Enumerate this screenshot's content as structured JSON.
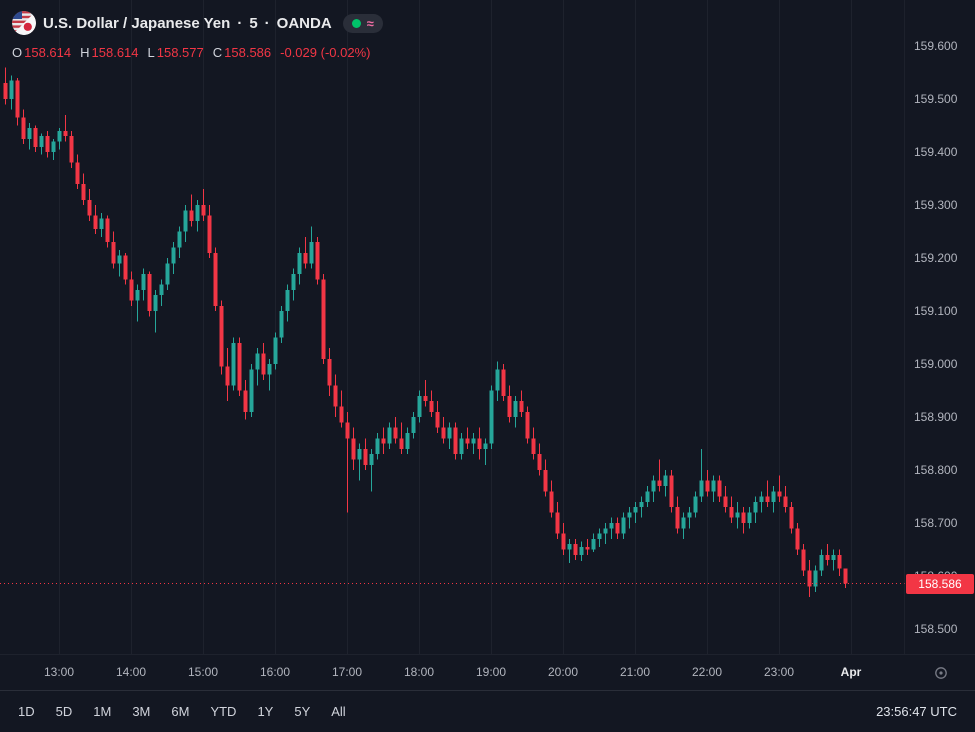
{
  "header": {
    "symbol": "U.S. Dollar / Japanese Yen",
    "sep": "·",
    "interval": "5",
    "exchange": "OANDA",
    "approx_symbol": "≈",
    "ohlc": {
      "o_label": "O",
      "o": "158.614",
      "h_label": "H",
      "h": "158.614",
      "l_label": "L",
      "l": "158.577",
      "c_label": "C",
      "c": "158.586",
      "change": "-0.029 (-0.02%)"
    }
  },
  "colors": {
    "background": "#131722",
    "up": "#26a69a",
    "down": "#f23645",
    "grid": "#1e222d",
    "axis_text": "#b2b5be",
    "status_dot_green": "#00c46a",
    "approx_pink": "#f16ea4"
  },
  "toolbar": {
    "ranges": [
      "1D",
      "5D",
      "1M",
      "3M",
      "6M",
      "YTD",
      "1Y",
      "5Y",
      "All"
    ],
    "clock": "23:56:47 UTC"
  },
  "chart_data": {
    "type": "candlestick",
    "title": "U.S. Dollar / Japanese Yen · 5 · OANDA",
    "xlabel": "",
    "ylabel": "",
    "grid": "vertical-only",
    "start_time": "12:15",
    "step_minutes": 5,
    "ylim": [
      158.451,
      159.687
    ],
    "bar_x0": 5,
    "bar_step": 6,
    "last_price": "158.586",
    "price_ticks": [
      "159.600",
      "159.500",
      "159.400",
      "159.300",
      "159.200",
      "159.100",
      "159.000",
      "158.900",
      "158.800",
      "158.700",
      "158.600",
      "158.500"
    ],
    "time_labels": [
      {
        "label": "13:00",
        "index": 9
      },
      {
        "label": "14:00",
        "index": 21
      },
      {
        "label": "15:00",
        "index": 33
      },
      {
        "label": "16:00",
        "index": 45
      },
      {
        "label": "17:00",
        "index": 57
      },
      {
        "label": "18:00",
        "index": 69
      },
      {
        "label": "19:00",
        "index": 81
      },
      {
        "label": "20:00",
        "index": 93
      },
      {
        "label": "21:00",
        "index": 105
      },
      {
        "label": "22:00",
        "index": 117
      },
      {
        "label": "23:00",
        "index": 129
      },
      {
        "label": "Apr",
        "index": 141,
        "highlight": true
      }
    ],
    "candles": [
      [
        159.53,
        159.56,
        159.49,
        159.5
      ],
      [
        159.5,
        159.545,
        159.48,
        159.535
      ],
      [
        159.535,
        159.54,
        159.45,
        159.465
      ],
      [
        159.465,
        159.48,
        159.415,
        159.425
      ],
      [
        159.425,
        159.455,
        159.405,
        159.445
      ],
      [
        159.445,
        159.45,
        159.4,
        159.41
      ],
      [
        159.41,
        159.435,
        159.395,
        159.43
      ],
      [
        159.43,
        159.44,
        159.39,
        159.4
      ],
      [
        159.4,
        159.425,
        159.385,
        159.42
      ],
      [
        159.42,
        159.445,
        159.405,
        159.44
      ],
      [
        159.44,
        159.47,
        159.42,
        159.43
      ],
      [
        159.43,
        159.44,
        159.37,
        159.38
      ],
      [
        159.38,
        159.395,
        159.33,
        159.34
      ],
      [
        159.34,
        159.36,
        159.3,
        159.31
      ],
      [
        159.31,
        159.33,
        159.27,
        159.28
      ],
      [
        159.28,
        159.3,
        159.245,
        159.255
      ],
      [
        159.255,
        159.285,
        159.24,
        159.275
      ],
      [
        159.275,
        159.28,
        159.22,
        159.23
      ],
      [
        159.23,
        159.25,
        159.18,
        159.19
      ],
      [
        159.19,
        159.215,
        159.165,
        159.205
      ],
      [
        159.205,
        159.21,
        159.15,
        159.16
      ],
      [
        159.16,
        159.175,
        159.11,
        159.12
      ],
      [
        159.12,
        159.15,
        159.08,
        159.14
      ],
      [
        159.14,
        159.18,
        159.12,
        159.17
      ],
      [
        159.17,
        159.175,
        159.09,
        159.1
      ],
      [
        159.1,
        159.14,
        159.06,
        159.13
      ],
      [
        159.13,
        159.16,
        159.11,
        159.15
      ],
      [
        159.15,
        159.2,
        159.14,
        159.19
      ],
      [
        159.19,
        159.23,
        159.17,
        159.22
      ],
      [
        159.22,
        159.26,
        159.2,
        159.25
      ],
      [
        159.25,
        159.3,
        159.23,
        159.29
      ],
      [
        159.29,
        159.32,
        159.26,
        159.27
      ],
      [
        159.27,
        159.31,
        159.25,
        159.3
      ],
      [
        159.3,
        159.33,
        159.27,
        159.28
      ],
      [
        159.28,
        159.3,
        159.2,
        159.21
      ],
      [
        159.21,
        159.22,
        159.1,
        159.11
      ],
      [
        159.11,
        159.12,
        158.98,
        158.995
      ],
      [
        158.995,
        159.03,
        158.93,
        158.96
      ],
      [
        158.96,
        159.05,
        158.95,
        159.04
      ],
      [
        159.04,
        159.05,
        158.94,
        158.95
      ],
      [
        158.95,
        158.97,
        158.895,
        158.91
      ],
      [
        158.91,
        159.0,
        158.9,
        158.99
      ],
      [
        158.99,
        159.03,
        158.96,
        159.02
      ],
      [
        159.02,
        159.04,
        158.97,
        158.98
      ],
      [
        158.98,
        159.01,
        158.95,
        159.0
      ],
      [
        159.0,
        159.06,
        158.99,
        159.05
      ],
      [
        159.05,
        159.11,
        159.04,
        159.1
      ],
      [
        159.1,
        159.15,
        159.08,
        159.14
      ],
      [
        159.14,
        159.18,
        159.12,
        159.17
      ],
      [
        159.17,
        159.22,
        159.15,
        159.21
      ],
      [
        159.21,
        159.24,
        159.18,
        159.19
      ],
      [
        159.19,
        159.26,
        159.18,
        159.23
      ],
      [
        159.23,
        159.24,
        159.15,
        159.16
      ],
      [
        159.16,
        159.17,
        159.0,
        159.01
      ],
      [
        159.01,
        159.03,
        158.94,
        158.96
      ],
      [
        158.96,
        158.98,
        158.9,
        158.92
      ],
      [
        158.92,
        158.95,
        158.88,
        158.89
      ],
      [
        158.89,
        158.91,
        158.72,
        158.86
      ],
      [
        158.86,
        158.88,
        158.8,
        158.82
      ],
      [
        158.82,
        158.85,
        158.78,
        158.84
      ],
      [
        158.84,
        158.86,
        158.8,
        158.81
      ],
      [
        158.81,
        158.84,
        158.76,
        158.83
      ],
      [
        158.83,
        158.87,
        158.82,
        158.86
      ],
      [
        158.86,
        158.88,
        158.83,
        158.85
      ],
      [
        158.85,
        158.89,
        158.84,
        158.88
      ],
      [
        158.88,
        158.9,
        158.85,
        158.86
      ],
      [
        158.86,
        158.89,
        158.83,
        158.84
      ],
      [
        158.84,
        158.88,
        158.83,
        158.87
      ],
      [
        158.87,
        158.91,
        158.86,
        158.9
      ],
      [
        158.9,
        158.95,
        158.89,
        158.94
      ],
      [
        158.94,
        158.97,
        158.92,
        158.93
      ],
      [
        158.93,
        158.95,
        158.9,
        158.91
      ],
      [
        158.91,
        158.93,
        158.87,
        158.88
      ],
      [
        158.88,
        158.9,
        158.85,
        158.86
      ],
      [
        158.86,
        158.89,
        158.84,
        158.88
      ],
      [
        158.88,
        158.89,
        158.82,
        158.83
      ],
      [
        158.83,
        158.87,
        158.82,
        158.86
      ],
      [
        158.86,
        158.88,
        158.84,
        158.85
      ],
      [
        158.85,
        158.87,
        158.83,
        158.86
      ],
      [
        158.86,
        158.88,
        158.82,
        158.84
      ],
      [
        158.84,
        158.86,
        158.81,
        158.85
      ],
      [
        158.85,
        158.96,
        158.84,
        158.95
      ],
      [
        158.95,
        159.005,
        158.93,
        158.99
      ],
      [
        158.99,
        159.0,
        158.93,
        158.94
      ],
      [
        158.94,
        158.96,
        158.89,
        158.9
      ],
      [
        158.9,
        158.94,
        158.88,
        158.93
      ],
      [
        158.93,
        158.95,
        158.9,
        158.91
      ],
      [
        158.91,
        158.92,
        158.85,
        158.86
      ],
      [
        158.86,
        158.88,
        158.82,
        158.83
      ],
      [
        158.83,
        158.85,
        158.79,
        158.8
      ],
      [
        158.8,
        158.82,
        158.75,
        158.76
      ],
      [
        158.76,
        158.78,
        158.71,
        158.72
      ],
      [
        158.72,
        158.74,
        158.67,
        158.68
      ],
      [
        158.68,
        158.7,
        158.64,
        158.65
      ],
      [
        158.65,
        158.67,
        158.625,
        158.66
      ],
      [
        158.66,
        158.67,
        158.63,
        158.64
      ],
      [
        158.64,
        158.665,
        158.628,
        158.655
      ],
      [
        158.655,
        158.67,
        158.64,
        158.65
      ],
      [
        158.65,
        158.68,
        158.645,
        158.67
      ],
      [
        158.67,
        158.69,
        158.655,
        158.68
      ],
      [
        158.68,
        158.7,
        158.66,
        158.69
      ],
      [
        158.69,
        158.71,
        158.67,
        158.7
      ],
      [
        158.7,
        158.71,
        158.67,
        158.68
      ],
      [
        158.68,
        158.72,
        158.67,
        158.71
      ],
      [
        158.71,
        158.73,
        158.69,
        158.72
      ],
      [
        158.72,
        158.74,
        158.7,
        158.73
      ],
      [
        158.73,
        158.75,
        158.71,
        158.74
      ],
      [
        158.74,
        158.77,
        158.73,
        158.76
      ],
      [
        158.76,
        158.79,
        158.74,
        158.78
      ],
      [
        158.78,
        158.82,
        158.76,
        158.77
      ],
      [
        158.77,
        158.8,
        158.75,
        158.79
      ],
      [
        158.79,
        158.8,
        158.72,
        158.73
      ],
      [
        158.73,
        158.75,
        158.68,
        158.69
      ],
      [
        158.69,
        158.72,
        158.67,
        158.71
      ],
      [
        158.71,
        158.73,
        158.69,
        158.72
      ],
      [
        158.72,
        158.76,
        158.71,
        158.75
      ],
      [
        158.75,
        158.84,
        158.74,
        158.78
      ],
      [
        158.78,
        158.8,
        158.75,
        158.76
      ],
      [
        158.76,
        158.79,
        158.74,
        158.78
      ],
      [
        158.78,
        158.79,
        158.74,
        158.75
      ],
      [
        158.75,
        158.77,
        158.72,
        158.73
      ],
      [
        158.73,
        158.75,
        158.7,
        158.71
      ],
      [
        158.71,
        158.74,
        158.69,
        158.72
      ],
      [
        158.72,
        158.73,
        158.68,
        158.7
      ],
      [
        158.7,
        158.73,
        158.69,
        158.72
      ],
      [
        158.72,
        158.75,
        158.7,
        158.74
      ],
      [
        158.74,
        158.76,
        158.72,
        158.75
      ],
      [
        158.75,
        158.78,
        158.73,
        158.74
      ],
      [
        158.74,
        158.77,
        158.72,
        158.76
      ],
      [
        158.76,
        158.79,
        158.74,
        158.75
      ],
      [
        158.75,
        158.77,
        158.72,
        158.73
      ],
      [
        158.73,
        158.74,
        158.68,
        158.69
      ],
      [
        158.69,
        158.7,
        158.64,
        158.65
      ],
      [
        158.65,
        158.66,
        158.6,
        158.61
      ],
      [
        158.61,
        158.63,
        158.56,
        158.58
      ],
      [
        158.58,
        158.62,
        158.57,
        158.61
      ],
      [
        158.61,
        158.65,
        158.6,
        158.64
      ],
      [
        158.64,
        158.66,
        158.62,
        158.63
      ],
      [
        158.63,
        158.65,
        158.61,
        158.64
      ],
      [
        158.64,
        158.65,
        158.6,
        158.614
      ],
      [
        158.614,
        158.614,
        158.577,
        158.586
      ]
    ]
  }
}
